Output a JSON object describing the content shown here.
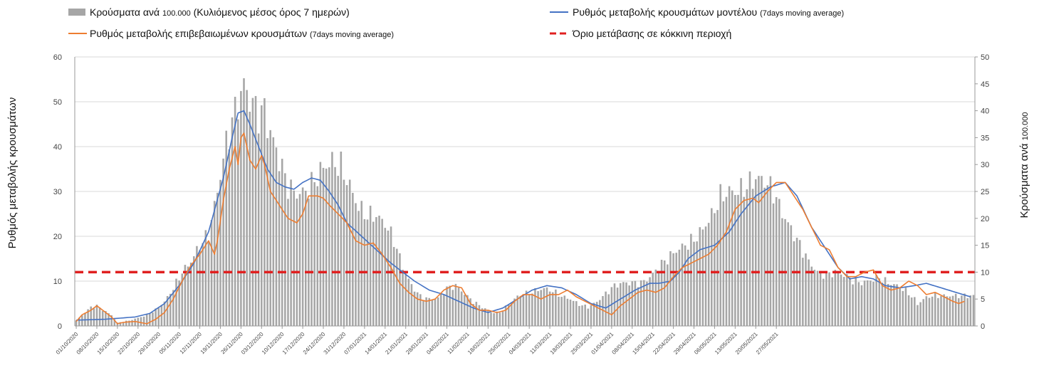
{
  "chart_data": {
    "type": "bar",
    "series": [
      {
        "name": "Κρούσματα ανά",
        "name_small": "100.000",
        "name_rest": "(Κυλιόμενος μέσος όρος 7 ημερών)",
        "kind": "bar",
        "axis": "right",
        "color": "#a6a6a6"
      },
      {
        "name": "Ρυθμός μεταβολής κρουσμάτων μοντέλου",
        "name_small": "(7days moving average)",
        "kind": "line",
        "axis": "left",
        "color": "#4472c4"
      },
      {
        "name": "Ρυθμός μεταβολής επιβεβαιωμένων κρουσμάτων",
        "name_small": "(7days moving average)",
        "kind": "line",
        "axis": "left",
        "color": "#ed7d31"
      },
      {
        "name": "Όριο μετάβασης σε κόκκινη περιοχή",
        "kind": "dashed",
        "axis": "left",
        "color": "#e02020",
        "value": 12
      }
    ],
    "y_left": {
      "label": "Ρυθμός μεταβολής κρουσμάτων",
      "min": 0,
      "max": 60,
      "ticks": [
        0,
        10,
        20,
        30,
        40,
        50,
        60
      ]
    },
    "y_right": {
      "label": "Κρούσματα ανά",
      "label_small": "100.000",
      "min": 0,
      "max": 50,
      "ticks": [
        0,
        5,
        10,
        15,
        20,
        25,
        30,
        35,
        40,
        45,
        50
      ]
    },
    "x_tick_labels": [
      "01/10/2020",
      "08/10/2020",
      "15/10/2020",
      "22/10/2020",
      "29/10/2020",
      "05/11/2020",
      "12/11/2020",
      "19/11/2020",
      "26/11/2020",
      "03/12/2020",
      "10/12/2020",
      "17/12/2020",
      "24/12/2020",
      "31/12/2020",
      "07/01/2021",
      "14/01/2021",
      "21/01/2021",
      "28/01/2021",
      "04/02/2021",
      "11/02/2021",
      "18/02/2021",
      "25/02/2021",
      "04/03/2021",
      "11/03/2021",
      "18/03/2021",
      "25/03/2021",
      "01/04/2021",
      "08/04/2021",
      "15/04/2021",
      "22/04/2021",
      "29/04/2021",
      "06/05/2021",
      "13/05/2021",
      "20/05/2021",
      "27/05/2021"
    ],
    "bar_keypoints": [
      [
        0,
        1
      ],
      [
        3,
        2.5
      ],
      [
        5,
        3.5
      ],
      [
        7,
        3.7
      ],
      [
        9,
        3
      ],
      [
        12,
        2
      ],
      [
        14,
        0.6
      ],
      [
        18,
        1
      ],
      [
        21,
        1.5
      ],
      [
        24,
        2
      ],
      [
        27,
        3
      ],
      [
        30,
        4.5
      ],
      [
        33,
        7
      ],
      [
        36,
        10
      ],
      [
        39,
        12
      ],
      [
        42,
        15
      ],
      [
        45,
        17
      ],
      [
        48,
        25
      ],
      [
        51,
        34
      ],
      [
        54,
        40
      ],
      [
        56,
        43
      ],
      [
        57,
        45
      ],
      [
        59,
        42
      ],
      [
        61,
        40.5
      ],
      [
        63,
        39
      ],
      [
        64,
        41
      ],
      [
        65,
        37
      ],
      [
        66,
        36
      ],
      [
        69,
        31
      ],
      [
        72,
        26
      ],
      [
        75,
        24.5
      ],
      [
        78,
        25
      ],
      [
        81,
        27
      ],
      [
        84,
        29.5
      ],
      [
        87,
        30.5
      ],
      [
        90,
        29.5
      ],
      [
        93,
        26
      ],
      [
        96,
        22
      ],
      [
        99,
        20.5
      ],
      [
        102,
        20.5
      ],
      [
        105,
        19
      ],
      [
        108,
        16
      ],
      [
        111,
        11
      ],
      [
        114,
        7.5
      ],
      [
        117,
        5.5
      ],
      [
        120,
        5
      ],
      [
        123,
        5.2
      ],
      [
        126,
        7
      ],
      [
        129,
        7.5
      ],
      [
        132,
        6
      ],
      [
        135,
        4.5
      ],
      [
        138,
        3.5
      ],
      [
        141,
        2.5
      ],
      [
        144,
        2.5
      ],
      [
        147,
        4
      ],
      [
        150,
        5.5
      ],
      [
        153,
        6
      ],
      [
        156,
        6.5
      ],
      [
        159,
        7
      ],
      [
        162,
        6.5
      ],
      [
        165,
        5.5
      ],
      [
        168,
        5
      ],
      [
        171,
        4
      ],
      [
        174,
        3.5
      ],
      [
        177,
        4.5
      ],
      [
        180,
        6
      ],
      [
        183,
        7.5
      ],
      [
        186,
        8
      ],
      [
        189,
        8
      ],
      [
        192,
        8
      ],
      [
        195,
        9
      ],
      [
        198,
        11
      ],
      [
        201,
        12.5
      ],
      [
        204,
        14
      ],
      [
        207,
        15
      ],
      [
        210,
        16
      ],
      [
        213,
        18
      ],
      [
        216,
        20.5
      ],
      [
        219,
        24
      ],
      [
        222,
        25
      ],
      [
        225,
        25
      ],
      [
        228,
        26
      ],
      [
        231,
        27.5
      ],
      [
        234,
        27
      ],
      [
        237,
        25
      ],
      [
        240,
        21
      ],
      [
        243,
        18
      ],
      [
        246,
        15
      ],
      [
        249,
        12
      ],
      [
        252,
        10
      ],
      [
        255,
        9.5
      ],
      [
        258,
        10
      ],
      [
        261,
        9.5
      ],
      [
        264,
        8.5
      ],
      [
        267,
        8
      ],
      [
        270,
        8.5
      ],
      [
        273,
        9
      ],
      [
        276,
        8
      ],
      [
        279,
        7.5
      ],
      [
        282,
        6.5
      ],
      [
        285,
        5
      ],
      [
        286,
        4
      ],
      [
        288,
        5
      ],
      [
        290,
        5.5
      ],
      [
        291,
        5.6
      ]
    ],
    "model_keypoints": [
      [
        0,
        1.3
      ],
      [
        10,
        1.5
      ],
      [
        20,
        2
      ],
      [
        25,
        2.8
      ],
      [
        30,
        5
      ],
      [
        35,
        9
      ],
      [
        40,
        14
      ],
      [
        45,
        21
      ],
      [
        50,
        33
      ],
      [
        53,
        42
      ],
      [
        55,
        47.5
      ],
      [
        57,
        48
      ],
      [
        59,
        45
      ],
      [
        62,
        40
      ],
      [
        65,
        35
      ],
      [
        68,
        32
      ],
      [
        71,
        31
      ],
      [
        74,
        30.5
      ],
      [
        77,
        32
      ],
      [
        80,
        33
      ],
      [
        83,
        32.5
      ],
      [
        86,
        30
      ],
      [
        89,
        27
      ],
      [
        92,
        23
      ],
      [
        97,
        20
      ],
      [
        102,
        17
      ],
      [
        107,
        14
      ],
      [
        111,
        12
      ],
      [
        115,
        10
      ],
      [
        120,
        8
      ],
      [
        125,
        7
      ],
      [
        130,
        5.5
      ],
      [
        135,
        4
      ],
      [
        140,
        3
      ],
      [
        145,
        4
      ],
      [
        150,
        6
      ],
      [
        155,
        8
      ],
      [
        160,
        9
      ],
      [
        165,
        8.5
      ],
      [
        170,
        7
      ],
      [
        175,
        5
      ],
      [
        180,
        4
      ],
      [
        185,
        6
      ],
      [
        190,
        8
      ],
      [
        195,
        9.5
      ],
      [
        198,
        9.5
      ],
      [
        202,
        10
      ],
      [
        205,
        12
      ],
      [
        208,
        15
      ],
      [
        212,
        17
      ],
      [
        217,
        18
      ],
      [
        222,
        21
      ],
      [
        226,
        25
      ],
      [
        231,
        29
      ],
      [
        236,
        31
      ],
      [
        241,
        32
      ],
      [
        245,
        29
      ],
      [
        250,
        22
      ],
      [
        255,
        17
      ],
      [
        259,
        13
      ],
      [
        263,
        10.5
      ],
      [
        267,
        11
      ],
      [
        271,
        10.5
      ],
      [
        275,
        9
      ],
      [
        280,
        8.5
      ],
      [
        285,
        9
      ],
      [
        289,
        9.5
      ],
      [
        294,
        8.5
      ],
      [
        299,
        7.5
      ],
      [
        304,
        6.5
      ]
    ],
    "confirmed_keypoints": [
      [
        0,
        1
      ],
      [
        2,
        2.5
      ],
      [
        5,
        3.5
      ],
      [
        7,
        4.5
      ],
      [
        9,
        3.5
      ],
      [
        12,
        2
      ],
      [
        14,
        0.5
      ],
      [
        16,
        0.8
      ],
      [
        20,
        1
      ],
      [
        24,
        0.5
      ],
      [
        27,
        1.5
      ],
      [
        30,
        3
      ],
      [
        33,
        6
      ],
      [
        36,
        10
      ],
      [
        39,
        13.5
      ],
      [
        42,
        16
      ],
      [
        45,
        19
      ],
      [
        47,
        16
      ],
      [
        48,
        19
      ],
      [
        50,
        28
      ],
      [
        52,
        35
      ],
      [
        54,
        40
      ],
      [
        55,
        36
      ],
      [
        56,
        42
      ],
      [
        57,
        43
      ],
      [
        59,
        37
      ],
      [
        61,
        35
      ],
      [
        63,
        38
      ],
      [
        64,
        36
      ],
      [
        66,
        30
      ],
      [
        69,
        27
      ],
      [
        72,
        24
      ],
      [
        75,
        23
      ],
      [
        77,
        25
      ],
      [
        79,
        29
      ],
      [
        82,
        29
      ],
      [
        84,
        28.5
      ],
      [
        86,
        27
      ],
      [
        89,
        25
      ],
      [
        92,
        23
      ],
      [
        95,
        19
      ],
      [
        98,
        18
      ],
      [
        101,
        18.5
      ],
      [
        104,
        16
      ],
      [
        107,
        13
      ],
      [
        110,
        9.5
      ],
      [
        113,
        7.5
      ],
      [
        116,
        6
      ],
      [
        119,
        5.5
      ],
      [
        122,
        6
      ],
      [
        125,
        8
      ],
      [
        128,
        9
      ],
      [
        131,
        8.5
      ],
      [
        134,
        5
      ],
      [
        137,
        3.5
      ],
      [
        140,
        3.5
      ],
      [
        143,
        3
      ],
      [
        146,
        3.5
      ],
      [
        149,
        5.5
      ],
      [
        152,
        7
      ],
      [
        155,
        7
      ],
      [
        158,
        6
      ],
      [
        161,
        7
      ],
      [
        164,
        7
      ],
      [
        167,
        8
      ],
      [
        170,
        6.5
      ],
      [
        173,
        5.5
      ],
      [
        176,
        4.5
      ],
      [
        179,
        3.5
      ],
      [
        182,
        2.5
      ],
      [
        185,
        4.5
      ],
      [
        188,
        6
      ],
      [
        191,
        7.5
      ],
      [
        194,
        8
      ],
      [
        197,
        7.5
      ],
      [
        200,
        8.5
      ],
      [
        203,
        11
      ],
      [
        206,
        13
      ],
      [
        209,
        14
      ],
      [
        212,
        15
      ],
      [
        215,
        16
      ],
      [
        218,
        18
      ],
      [
        221,
        21
      ],
      [
        224,
        26
      ],
      [
        227,
        28
      ],
      [
        230,
        28.5
      ],
      [
        232,
        27.5
      ],
      [
        235,
        30
      ],
      [
        238,
        32
      ],
      [
        241,
        32
      ],
      [
        244,
        29
      ],
      [
        247,
        26
      ],
      [
        250,
        22
      ],
      [
        253,
        18
      ],
      [
        256,
        17
      ],
      [
        259,
        13
      ],
      [
        262,
        11
      ],
      [
        265,
        11
      ],
      [
        268,
        12
      ],
      [
        271,
        12.5
      ],
      [
        274,
        9
      ],
      [
        277,
        8
      ],
      [
        280,
        8.5
      ],
      [
        283,
        10
      ],
      [
        286,
        9
      ],
      [
        289,
        7
      ],
      [
        292,
        7.5
      ],
      [
        295,
        6.5
      ],
      [
        298,
        5.5
      ],
      [
        300,
        5
      ],
      [
        302,
        5.5
      ]
    ],
    "n_days": 306,
    "x_tick_step": 7
  }
}
